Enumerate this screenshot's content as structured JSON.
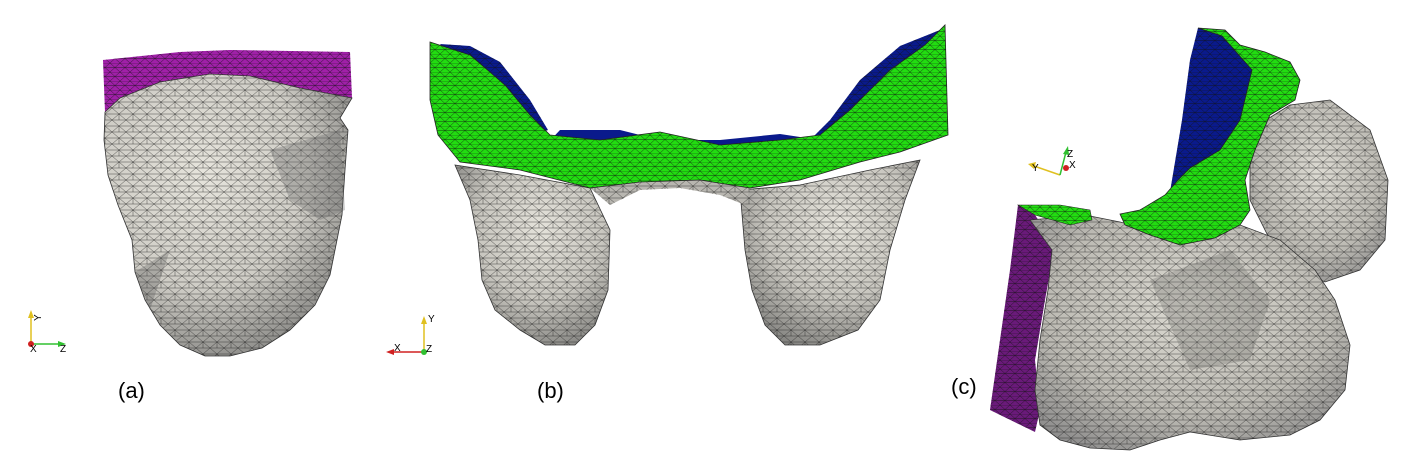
{
  "figure": {
    "panels": [
      {
        "label": "(a)",
        "axes": [
          "Y",
          "X",
          "Z"
        ]
      },
      {
        "label": "(b)",
        "axes": [
          "Y",
          "X",
          "Z"
        ]
      },
      {
        "label": "(c)",
        "axes": [
          "Y",
          "Z",
          "X"
        ]
      }
    ],
    "colors": {
      "skin": "#d9d7d0",
      "skin_shadow": "#8e8e8c",
      "mesh_line": "#1a1a1a",
      "chest_wall_purple": "#a020a8",
      "side_purple": "#6a1a7a",
      "band_green": "#22dd11",
      "back_blue": "#0a1a8c",
      "axis_x_red": "#d02020",
      "axis_y_yellow": "#e0c020",
      "axis_z_green": "#30c030"
    }
  }
}
